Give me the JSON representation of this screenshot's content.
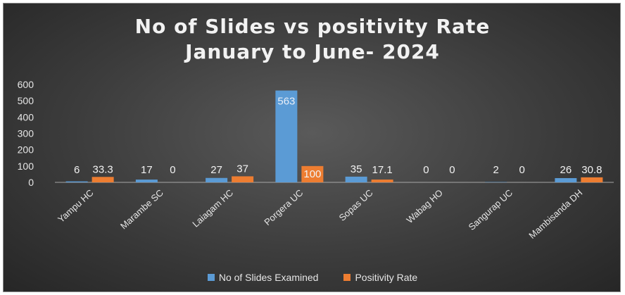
{
  "chart_data": {
    "type": "bar",
    "title_line1": "No of Slides vs positivity Rate",
    "title_line2": "January to June- 2024",
    "categories": [
      "Yampu HC",
      "Marambe SC",
      "Laiagam HC",
      "Porgera UC",
      "Sopas UC",
      "Wabag HO",
      "Sangurap UC",
      "Mambisanda DH"
    ],
    "series": [
      {
        "name": "No of Slides Examined",
        "values": [
          6,
          17,
          27,
          563,
          35,
          0,
          2,
          26
        ],
        "labels": [
          "6",
          "17",
          "27",
          "563",
          "35",
          "0",
          "2",
          "26"
        ],
        "color": "#5b9bd5"
      },
      {
        "name": "Positivity Rate",
        "values": [
          33.3,
          0,
          37,
          100,
          17.1,
          0,
          0,
          30.8
        ],
        "labels": [
          "33.3",
          "0",
          "37",
          "100",
          "17.1",
          "0",
          "0",
          "30.8"
        ],
        "color": "#ed7d31"
      }
    ],
    "yticks": [
      "0",
      "100",
      "200",
      "300",
      "400",
      "500",
      "600"
    ],
    "ylim": [
      0,
      600
    ],
    "grid": false,
    "legend_position": "bottom"
  }
}
